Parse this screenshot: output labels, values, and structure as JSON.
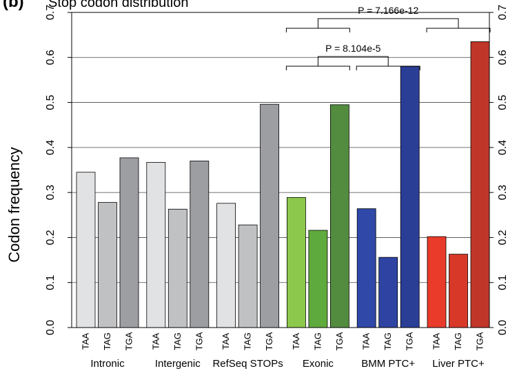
{
  "panel_label": "(b)",
  "chart_data": {
    "type": "bar",
    "title": "Stop codon distribution",
    "xlabel": "",
    "ylabel": "Codon frequency",
    "ylim": [
      0,
      0.7
    ],
    "yticks": [
      "0.0",
      "0.1",
      "0.2",
      "0.3",
      "0.4",
      "0.5",
      "0.6",
      "0.7"
    ],
    "grid": "horizontal",
    "codons": [
      "TAA",
      "TAG",
      "TGA"
    ],
    "groups": [
      {
        "name": "Intronic",
        "values": [
          0.345,
          0.278,
          0.377
        ],
        "colors": [
          "#e1e2e4",
          "#c0c1c3",
          "#9d9ea2"
        ]
      },
      {
        "name": "Intergenic",
        "values": [
          0.367,
          0.263,
          0.37
        ],
        "colors": [
          "#e1e2e4",
          "#c0c1c3",
          "#9d9ea2"
        ]
      },
      {
        "name": "RefSeq STOPs",
        "values": [
          0.276,
          0.228,
          0.496
        ],
        "colors": [
          "#e1e2e4",
          "#c0c1c3",
          "#9d9ea2"
        ]
      },
      {
        "name": "Exonic",
        "values": [
          0.289,
          0.216,
          0.495
        ],
        "colors": [
          "#8cc84b",
          "#5faa3c",
          "#538c3f"
        ]
      },
      {
        "name": "BMM PTC+",
        "values": [
          0.264,
          0.156,
          0.58
        ],
        "colors": [
          "#3048a8",
          "#2f44a2",
          "#2a3e96"
        ]
      },
      {
        "name": "Liver PTC+",
        "values": [
          0.202,
          0.163,
          0.635
        ],
        "colors": [
          "#ea3b2a",
          "#d83828",
          "#c03628"
        ]
      }
    ],
    "annotations": [
      {
        "text": "P = 7.166e-12",
        "left_group": 3,
        "right_group": 5
      },
      {
        "text": "P = 8.104e-5",
        "left_group": 3,
        "right_group": 4
      }
    ]
  }
}
